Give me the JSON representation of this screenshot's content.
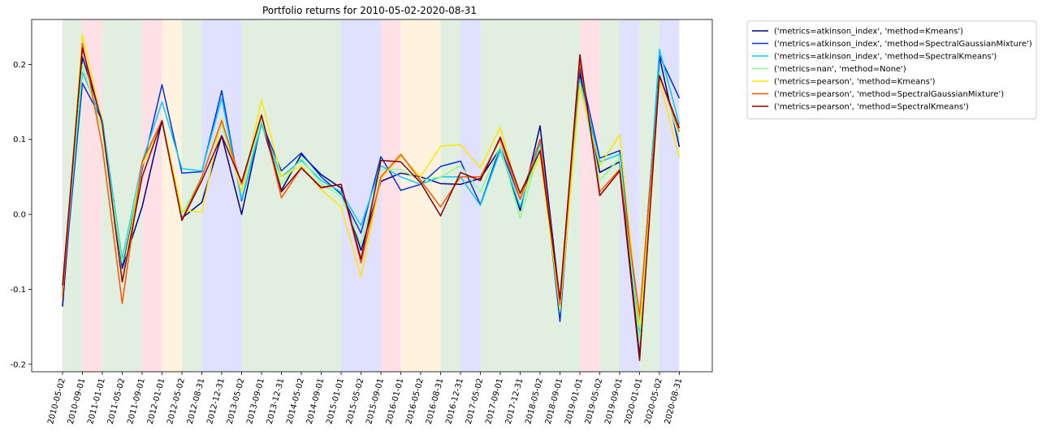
{
  "chart_data": {
    "type": "line",
    "title": "Portfolio returns for 2010-05-02-2020-08-31",
    "xlabel": "",
    "ylabel": "",
    "ylim": [
      -0.21,
      0.26
    ],
    "y_ticks": [
      "-0.2",
      "-0.1",
      "0.0",
      "0.1",
      "0.2"
    ],
    "y_tick_values": [
      -0.2,
      -0.1,
      0.0,
      0.1,
      0.2
    ],
    "x": [
      "2010-05-02",
      "2010-09-01",
      "2011-01-01",
      "2011-05-02",
      "2011-09-01",
      "2012-01-01",
      "2012-05-02",
      "2012-08-31",
      "2012-12-31",
      "2013-05-02",
      "2013-09-01",
      "2013-12-31",
      "2014-05-02",
      "2014-09-01",
      "2015-01-01",
      "2015-05-02",
      "2015-09-01",
      "2016-01-01",
      "2016-05-02",
      "2016-08-31",
      "2016-12-31",
      "2017-05-02",
      "2017-09-01",
      "2017-12-31",
      "2018-05-02",
      "2018-09-01",
      "2019-01-01",
      "2019-05-02",
      "2019-09-01",
      "2020-01-01",
      "2020-05-02",
      "2020-08-31"
    ],
    "regime_bands": [
      {
        "from": 0,
        "to": 1,
        "color": "#e0efe0"
      },
      {
        "from": 1,
        "to": 2,
        "color": "#ffe0e6"
      },
      {
        "from": 2,
        "to": 4,
        "color": "#e0efe0"
      },
      {
        "from": 4,
        "to": 5,
        "color": "#ffe0e6"
      },
      {
        "from": 5,
        "to": 6,
        "color": "#fff3e0"
      },
      {
        "from": 6,
        "to": 7,
        "color": "#e0efe0"
      },
      {
        "from": 7,
        "to": 9,
        "color": "#e0e0ff"
      },
      {
        "from": 9,
        "to": 14,
        "color": "#e0efe0"
      },
      {
        "from": 14,
        "to": 16,
        "color": "#e0e0ff"
      },
      {
        "from": 16,
        "to": 17,
        "color": "#ffe0e6"
      },
      {
        "from": 17,
        "to": 19,
        "color": "#fff3e0"
      },
      {
        "from": 19,
        "to": 20,
        "color": "#e0efe0"
      },
      {
        "from": 20,
        "to": 21,
        "color": "#e0e0ff"
      },
      {
        "from": 21,
        "to": 26,
        "color": "#e0efe0"
      },
      {
        "from": 26,
        "to": 27,
        "color": "#ffe0e6"
      },
      {
        "from": 27,
        "to": 28,
        "color": "#e0efe0"
      },
      {
        "from": 28,
        "to": 29,
        "color": "#e0e0ff"
      },
      {
        "from": 29,
        "to": 30,
        "color": "#e0efe0"
      },
      {
        "from": 30,
        "to": 31,
        "color": "#e0e0ff"
      }
    ],
    "legend_position": "outside-right-top",
    "series": [
      {
        "name": "('metrics=atkinson_index', 'method=Kmeans')",
        "color": "#00008b",
        "values": [
          -0.123,
          0.21,
          0.125,
          -0.072,
          0.01,
          0.125,
          -0.005,
          0.016,
          0.105,
          0.0,
          0.123,
          0.032,
          0.08,
          0.053,
          0.035,
          -0.048,
          0.044,
          0.055,
          0.05,
          0.041,
          0.04,
          0.048,
          0.088,
          0.005,
          0.118,
          -0.117,
          0.188,
          0.056,
          0.07,
          -0.19,
          0.21,
          0.09
        ]
      },
      {
        "name": "('metrics=atkinson_index', 'method=SpectralGaussianMixture')",
        "color": "#0033dd",
        "values": [
          -0.11,
          0.175,
          0.125,
          -0.07,
          0.06,
          0.173,
          0.055,
          0.057,
          0.165,
          0.018,
          0.123,
          0.058,
          0.082,
          0.05,
          0.027,
          -0.025,
          0.077,
          0.032,
          0.04,
          0.064,
          0.071,
          0.013,
          0.09,
          0.02,
          0.1,
          -0.143,
          0.195,
          0.075,
          0.085,
          -0.148,
          0.212,
          0.155
        ]
      },
      {
        "name": "('metrics=atkinson_index', 'method=SpectralKmeans')",
        "color": "#00ccff",
        "values": [
          -0.1,
          0.19,
          0.125,
          -0.06,
          0.07,
          0.15,
          0.061,
          0.058,
          0.155,
          0.02,
          0.12,
          0.05,
          0.072,
          0.045,
          0.03,
          -0.015,
          0.065,
          0.05,
          0.04,
          0.05,
          0.05,
          0.012,
          0.085,
          0.01,
          0.095,
          -0.12,
          0.18,
          0.07,
          0.08,
          -0.16,
          0.22,
          0.12
        ]
      },
      {
        "name": "('metrics=nan', 'method=None')",
        "color": "#88ff88",
        "values": [
          -0.1,
          0.2,
          0.11,
          -0.065,
          0.065,
          0.125,
          0.0,
          0.05,
          0.12,
          0.03,
          0.125,
          0.04,
          0.075,
          0.04,
          0.025,
          -0.04,
          0.06,
          0.06,
          0.045,
          0.05,
          0.065,
          0.03,
          0.09,
          -0.005,
          0.09,
          -0.13,
          0.175,
          0.045,
          0.075,
          -0.17,
          0.19,
          0.1
        ]
      },
      {
        "name": "('metrics=pearson', 'method=Kmeans')",
        "color": "#ffe600",
        "values": [
          -0.11,
          0.24,
          0.12,
          -0.09,
          0.065,
          0.125,
          0.005,
          0.003,
          0.128,
          0.03,
          0.153,
          0.05,
          0.065,
          0.033,
          0.01,
          -0.083,
          0.048,
          0.078,
          0.05,
          0.091,
          0.093,
          0.062,
          0.116,
          0.02,
          0.078,
          -0.125,
          0.17,
          0.065,
          0.106,
          -0.15,
          0.178,
          0.076
        ]
      },
      {
        "name": "('metrics=pearson', 'method=SpectralGaussianMixture')",
        "color": "#ff5500",
        "values": [
          -0.11,
          0.228,
          0.09,
          -0.119,
          0.07,
          0.125,
          -0.007,
          0.05,
          0.125,
          0.04,
          0.133,
          0.022,
          0.062,
          0.035,
          0.04,
          -0.065,
          0.05,
          0.08,
          0.045,
          0.01,
          0.05,
          0.05,
          0.1,
          0.02,
          0.1,
          -0.12,
          0.205,
          0.03,
          0.06,
          -0.135,
          0.185,
          0.11
        ]
      },
      {
        "name": "('metrics=pearson', 'method=SpectralKmeans')",
        "color": "#8b0000",
        "values": [
          -0.095,
          0.222,
          0.12,
          -0.09,
          0.05,
          0.125,
          -0.008,
          0.045,
          0.105,
          0.043,
          0.132,
          0.03,
          0.062,
          0.036,
          0.04,
          -0.06,
          0.072,
          0.07,
          0.042,
          -0.002,
          0.056,
          0.045,
          0.103,
          0.028,
          0.085,
          -0.113,
          0.213,
          0.025,
          0.058,
          -0.195,
          0.185,
          0.115
        ]
      }
    ]
  }
}
